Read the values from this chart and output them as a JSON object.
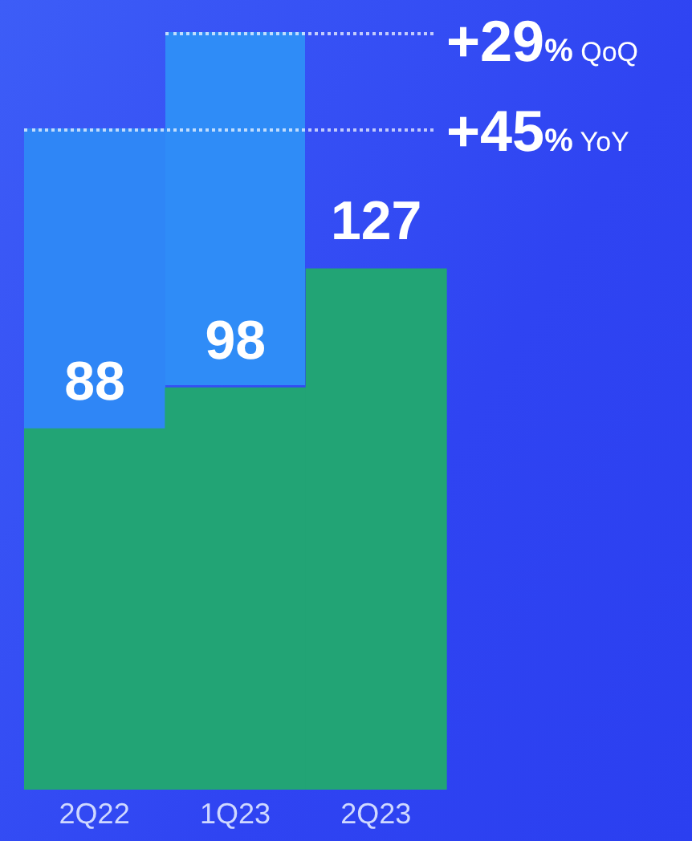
{
  "chart_data": {
    "type": "bar",
    "categories": [
      "2Q22",
      "1Q23",
      "2Q23"
    ],
    "values": [
      88,
      98,
      127
    ],
    "color": "#22a475",
    "data_labels": true,
    "annotations": [
      "+29% QoQ",
      "+45% YoY"
    ]
  }
}
